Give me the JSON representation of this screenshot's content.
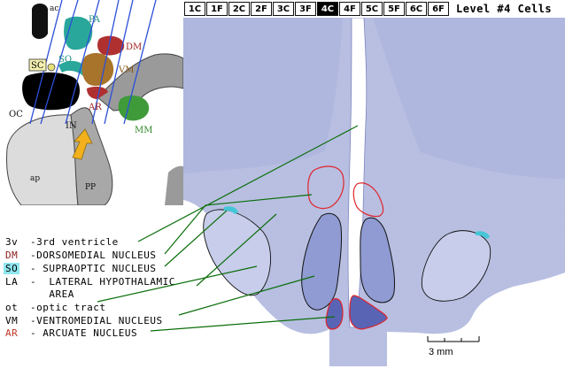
{
  "tabs": [
    "1C",
    "1F",
    "2C",
    "2F",
    "3C",
    "3F",
    "4C",
    "4F",
    "5C",
    "5F",
    "6C",
    "6F"
  ],
  "active_tab": "4C",
  "level_label": "Level #4 Cells",
  "schematic": {
    "labels": {
      "ac": "ac",
      "pa": "PA",
      "dm": "DM",
      "sc": "SC",
      "so": "SO",
      "vm": "VM",
      "oc": "OC",
      "ar": "AR",
      "in": "IN",
      "mm": "MM",
      "ap": "ap",
      "pp": "PP"
    }
  },
  "legend": [
    {
      "abbr": "3v",
      "desc": "-3rd ventricle",
      "color": "#000000"
    },
    {
      "abbr": "DM",
      "desc": "-DORSOMEDIAL NUCLEUS",
      "color": "#8b1a1a"
    },
    {
      "abbr": "SO",
      "desc": "- SUPRAOPTIC NUCLEUS",
      "color": "#000000"
    },
    {
      "abbr": "LA",
      "desc": "-  LATERAL HYPOTHALAMIC",
      "color": "#000000"
    },
    {
      "abbr": "",
      "desc": "   AREA",
      "color": "#000000"
    },
    {
      "abbr": "ot",
      "desc": "-optic tract",
      "color": "#000000"
    },
    {
      "abbr": "VM",
      "desc": "-VENTROMEDIAL NUCLEUS",
      "color": "#000000"
    },
    {
      "abbr": "AR",
      "desc": "- ARCUATE NUCLEUS",
      "color": "#c0392b"
    }
  ],
  "scale_bar": "3 mm",
  "colors": {
    "stain": "#a9b2da",
    "outline_red": "#e0242a",
    "outline_black": "#111111",
    "leader": "#0a6e0a",
    "blue_lines": "#2b4fd8"
  }
}
